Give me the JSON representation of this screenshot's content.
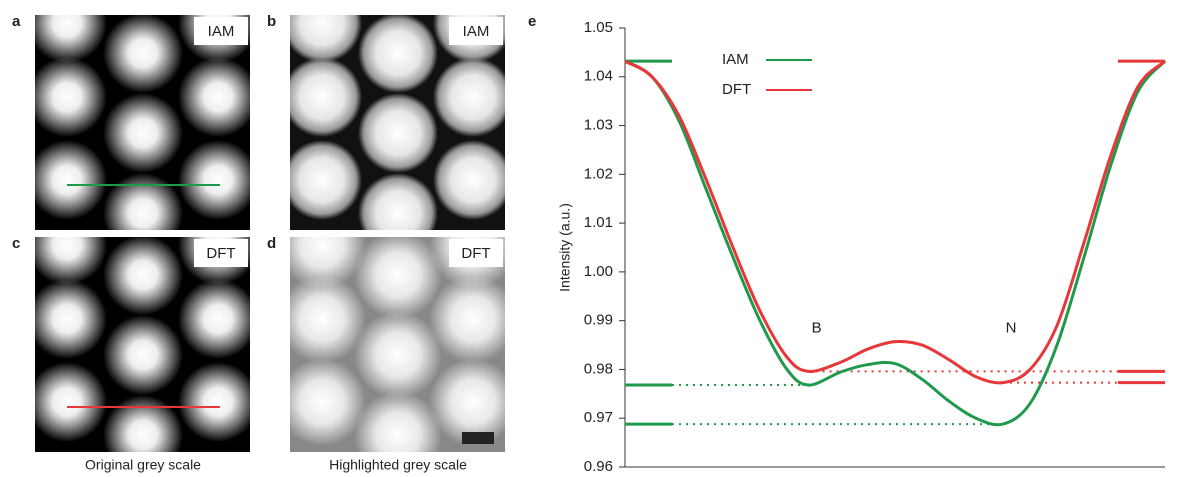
{
  "panels": [
    {
      "letter": "a",
      "tag": "IAM"
    },
    {
      "letter": "b",
      "tag": "IAM"
    },
    {
      "letter": "c",
      "tag": "DFT"
    },
    {
      "letter": "d",
      "tag": "DFT"
    }
  ],
  "captions": [
    "Original grey scale",
    "Highlighted grey scale"
  ],
  "chart_data": {
    "type": "line",
    "panel_label": "e",
    "ylabel": "Intensity (a.u.)",
    "x": [
      0,
      5,
      10,
      15,
      20,
      25,
      30,
      34,
      40,
      45,
      50,
      55,
      60,
      65,
      70,
      75,
      80,
      85,
      90,
      95,
      100
    ],
    "xlim": [
      0,
      100
    ],
    "ylim": [
      0.96,
      1.05
    ],
    "yticks": [
      0.96,
      0.97,
      0.98,
      0.99,
      {
        "value": 1,
        "label": "1.00"
      },
      1.01,
      1.02,
      1.03,
      1.04,
      1.05
    ],
    "series": [
      {
        "name": "IAM",
        "color": "#1f9a4c",
        "values": [
          1.0432,
          1.04,
          1.031,
          1.017,
          1.003,
          0.99,
          0.98,
          0.9768,
          0.9795,
          0.981,
          0.9812,
          0.978,
          0.9735,
          0.97,
          0.9688,
          0.973,
          0.985,
          1.003,
          1.022,
          1.037,
          1.0432
        ]
      },
      {
        "name": "DFT",
        "color": "#e8373b",
        "values": [
          1.0432,
          1.04,
          1.032,
          1.019,
          1.005,
          0.992,
          0.9825,
          0.9796,
          0.9815,
          0.9842,
          0.9857,
          0.985,
          0.982,
          0.9785,
          0.9773,
          0.98,
          0.989,
          1.006,
          1.024,
          1.038,
          1.0432
        ]
      }
    ],
    "levels": [
      {
        "series": 0,
        "value": 1.0432,
        "side": "left"
      },
      {
        "series": 0,
        "value": 0.9768,
        "side": "left",
        "dotted_to": 34
      },
      {
        "series": 0,
        "value": 0.9688,
        "side": "left",
        "dotted_to": 70
      },
      {
        "series": 1,
        "value": 1.0432,
        "side": "right"
      },
      {
        "series": 1,
        "value": 0.9796,
        "side": "right",
        "dotted_to": 34
      },
      {
        "series": 1,
        "value": 0.9773,
        "side": "right",
        "dotted_to": 70
      }
    ],
    "annotations": [
      {
        "text": "B",
        "x": 34,
        "y": 0.99
      },
      {
        "text": "N",
        "x": 70,
        "y": 0.99
      }
    ]
  }
}
